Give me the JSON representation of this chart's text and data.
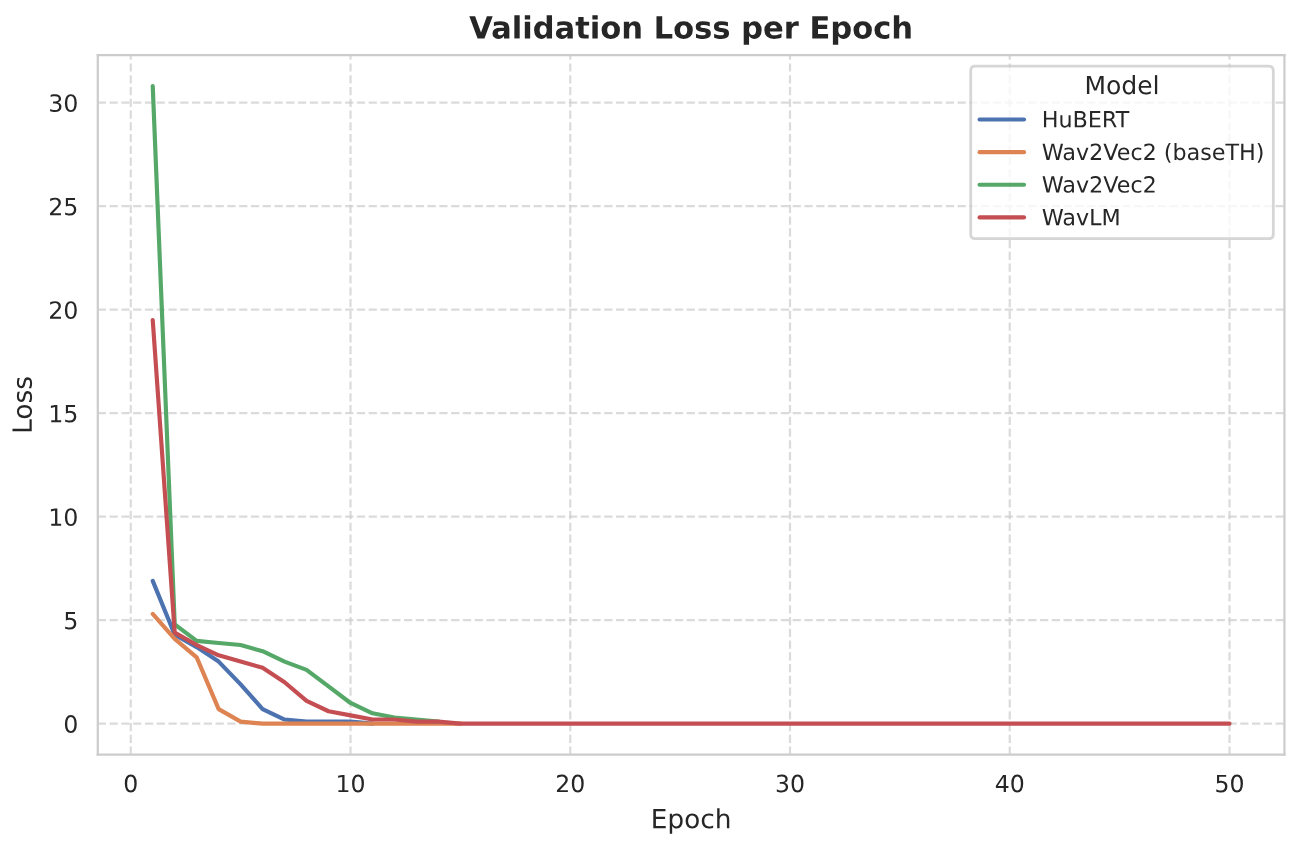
{
  "chart_data": {
    "type": "line",
    "title": "Validation Loss per Epoch",
    "xlabel": "Epoch",
    "ylabel": "Loss",
    "legend_title": "Model",
    "legend": "top right",
    "grid": true,
    "line_style": "solid",
    "x": [
      1,
      2,
      3,
      4,
      5,
      6,
      7,
      8,
      9,
      10,
      11,
      12,
      13,
      14,
      15,
      16,
      17,
      18,
      19,
      20,
      21,
      22,
      23,
      24,
      25,
      26,
      27,
      28,
      29,
      30,
      31,
      32,
      33,
      34,
      35,
      36,
      37,
      38,
      39,
      40,
      41,
      42,
      43,
      44,
      45,
      46,
      47,
      48,
      49,
      50
    ],
    "xlim": [
      -1.5,
      52.5
    ],
    "xticks": [
      0,
      10,
      20,
      30,
      40,
      50
    ],
    "ylim": [
      -1.5,
      32.3
    ],
    "yticks": [
      0,
      5,
      10,
      15,
      20,
      25,
      30
    ],
    "series": [
      {
        "name": "HuBERT",
        "color": "#4c72b0",
        "values": [
          6.9,
          4.3,
          3.7,
          3.0,
          1.9,
          0.7,
          0.2,
          0.1,
          0.1,
          0.1,
          0.0,
          null,
          null,
          null,
          null,
          null,
          null,
          null,
          null,
          null,
          null,
          null,
          null,
          null,
          null,
          null,
          null,
          null,
          null,
          null,
          null,
          null,
          null,
          null,
          null,
          null,
          null,
          null,
          null,
          null,
          null,
          null,
          null,
          null,
          null,
          null,
          null,
          null,
          null,
          null
        ]
      },
      {
        "name": "Wav2Vec2 (baseTH)",
        "color": "#dd8452",
        "values": [
          5.3,
          4.1,
          3.2,
          0.7,
          0.1,
          0.0,
          0.0,
          0.0,
          0.0,
          0.0,
          0.0,
          0.0,
          0.0,
          0.0,
          0.0,
          null,
          null,
          null,
          null,
          null,
          null,
          null,
          null,
          null,
          null,
          null,
          null,
          null,
          null,
          null,
          null,
          null,
          null,
          null,
          null,
          null,
          null,
          null,
          null,
          null,
          null,
          null,
          null,
          null,
          null,
          null,
          null,
          null,
          null,
          null
        ]
      },
      {
        "name": "Wav2Vec2",
        "color": "#55a868",
        "values": [
          30.8,
          4.8,
          4.0,
          3.9,
          3.8,
          3.5,
          3.0,
          2.6,
          1.8,
          1.0,
          0.5,
          0.3,
          0.2,
          0.1,
          null,
          null,
          null,
          null,
          null,
          null,
          null,
          null,
          null,
          null,
          null,
          null,
          null,
          null,
          null,
          null,
          null,
          null,
          null,
          null,
          null,
          null,
          null,
          null,
          null,
          null,
          null,
          null,
          null,
          null,
          null,
          null,
          null,
          null,
          null,
          null
        ]
      },
      {
        "name": "WavLM",
        "color": "#c44e52",
        "values": [
          19.5,
          4.4,
          3.8,
          3.3,
          3.0,
          2.7,
          2.0,
          1.1,
          0.6,
          0.4,
          0.2,
          0.2,
          0.1,
          0.1,
          0.0,
          0.0,
          0.0,
          0.0,
          0.0,
          0.0,
          0.0,
          0.0,
          0.0,
          0.0,
          0.0,
          0.0,
          0.0,
          0.0,
          0.0,
          0.0,
          0.0,
          0.0,
          0.0,
          0.0,
          0.0,
          0.0,
          0.0,
          0.0,
          0.0,
          0.0,
          0.0,
          0.0,
          0.0,
          0.0,
          0.0,
          0.0,
          0.0,
          0.0,
          0.0,
          0.0
        ]
      }
    ]
  }
}
